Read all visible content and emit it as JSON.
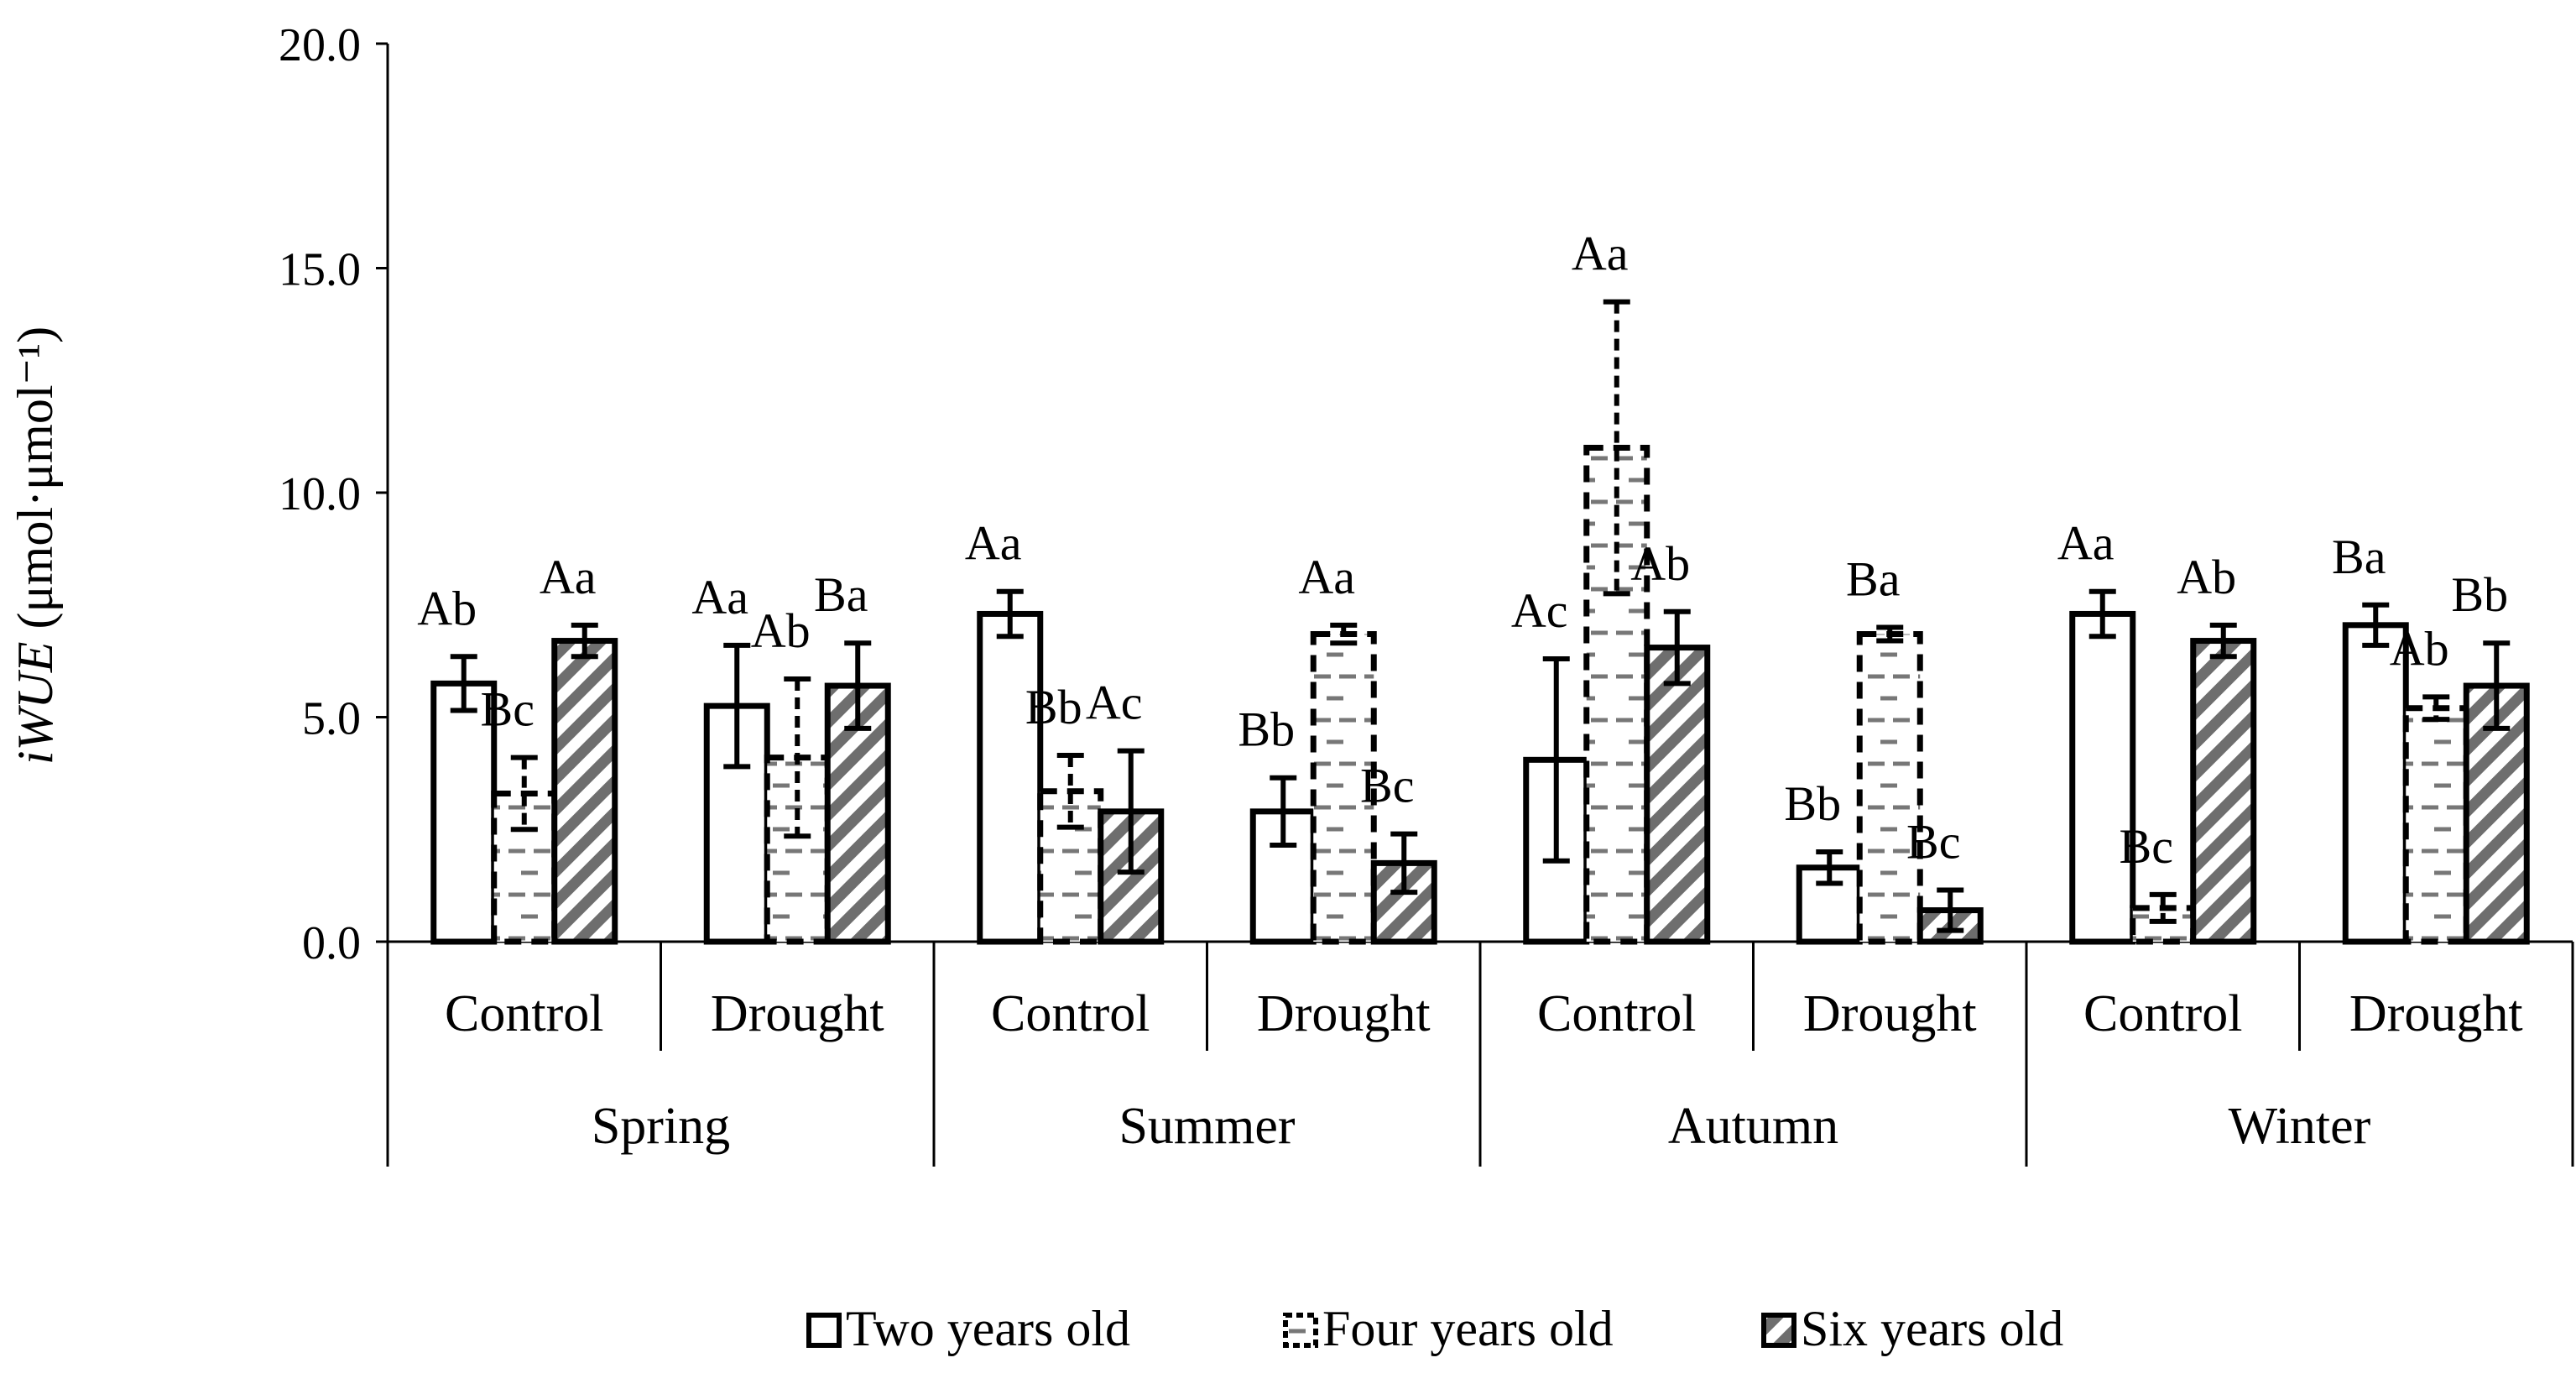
{
  "chart_data": {
    "type": "bar",
    "ylabel_italic": "iWUE",
    "ylabel_unit": " (μmol·μmol⁻¹)",
    "ylim": [
      0,
      20
    ],
    "y_ticks": [
      "0.0",
      "5.0",
      "10.0",
      "15.0",
      "20.0"
    ],
    "y_tick_values": [
      0,
      5,
      10,
      15,
      20
    ],
    "seasons": [
      "Spring",
      "Summer",
      "Autumn",
      "Winter"
    ],
    "treatments": [
      "Control",
      "Drought"
    ],
    "categories": [
      "Spring Control",
      "Spring Drought",
      "Summer Control",
      "Summer Drought",
      "Autumn Control",
      "Autumn Drought",
      "Winter Control",
      "Winter Drought"
    ],
    "series": [
      {
        "name": "Two years old",
        "pattern": "hollow",
        "values": [
          5.75,
          5.25,
          7.3,
          2.9,
          4.05,
          1.65,
          7.3,
          7.05
        ],
        "errors": [
          0.6,
          1.35,
          0.5,
          0.75,
          2.25,
          0.35,
          0.5,
          0.45
        ],
        "labels": [
          "Ab",
          "Aa",
          "Aa",
          "Bb",
          "Ac",
          "Bb",
          "Aa",
          "Ba"
        ]
      },
      {
        "name": "Four years old",
        "pattern": "dashed",
        "values": [
          3.3,
          4.1,
          3.35,
          6.85,
          11.0,
          6.85,
          0.75,
          5.2
        ],
        "errors": [
          0.8,
          1.75,
          0.8,
          0.2,
          3.25,
          0.15,
          0.3,
          0.25
        ],
        "labels": [
          "Bc",
          "Ab",
          "Bb",
          "Aa",
          "Aa",
          "Ba",
          "Bc",
          "Ab"
        ]
      },
      {
        "name": "Six years old",
        "pattern": "hatched",
        "values": [
          6.7,
          5.7,
          2.9,
          1.75,
          6.55,
          0.7,
          6.7,
          5.7
        ],
        "errors": [
          0.35,
          0.95,
          1.35,
          0.65,
          0.8,
          0.45,
          0.35,
          0.95
        ],
        "labels": [
          "Aa",
          "Ba",
          "Ac",
          "Bc",
          "Ab",
          "Bc",
          "Ab",
          "Bb"
        ]
      }
    ],
    "legend_position": "bottom-center"
  }
}
